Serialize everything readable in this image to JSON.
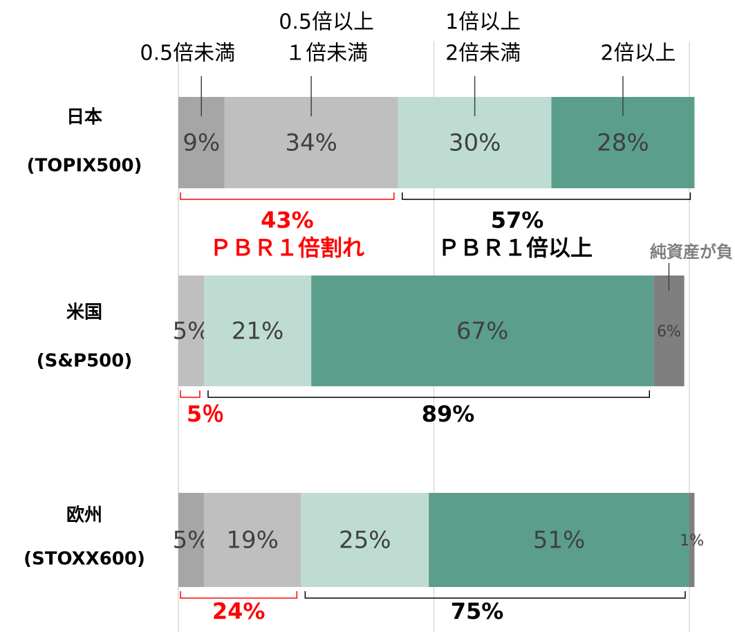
{
  "chart_data": {
    "type": "stacked-barh",
    "categories": [
      [
        "日本",
        "(TOPIX500)"
      ],
      [
        "米国",
        "(S&P500)"
      ],
      [
        "欧州",
        "(STOXX600)"
      ]
    ],
    "series": [
      {
        "name": [
          "0.5倍未満"
        ],
        "color": "#a6a6a6",
        "values": [
          9,
          null,
          5
        ],
        "value_labels": [
          "9%",
          null,
          "5%"
        ]
      },
      {
        "name": [
          "0.5倍以上",
          "１倍未満"
        ],
        "color": "#bfbfbf",
        "values": [
          34,
          5,
          19
        ],
        "value_labels": [
          "34%",
          "5%",
          "19%"
        ]
      },
      {
        "name": [
          "1倍以上",
          "2倍未満"
        ],
        "color": "#bfdcd3",
        "values": [
          30,
          21,
          25
        ],
        "value_labels": [
          "30%",
          "21%",
          "25%"
        ]
      },
      {
        "name": [
          "2倍以上"
        ],
        "color": "#5b9e8c",
        "values": [
          28,
          67,
          51
        ],
        "value_labels": [
          "28%",
          "67%",
          "51%"
        ]
      },
      {
        "name": [
          "純資産が負"
        ],
        "color": "#7f7f7f",
        "values": [
          null,
          6,
          1
        ],
        "value_labels": [
          null,
          "6%",
          "1%"
        ]
      }
    ],
    "below_1x": {
      "name": "ＰＢＲ１倍割れ",
      "color": "#ff0000",
      "values": [
        43,
        5,
        24
      ],
      "value_labels": [
        "43%",
        "5％",
        "24%"
      ]
    },
    "above_1x": {
      "name": "ＰＢＲ１倍以上",
      "color": "#000000",
      "values": [
        57,
        89,
        75
      ],
      "value_labels": [
        "57%",
        "89%",
        "75%"
      ]
    },
    "xlim": [
      0,
      100
    ],
    "xticks": [
      0,
      50,
      100
    ],
    "grid": true
  }
}
